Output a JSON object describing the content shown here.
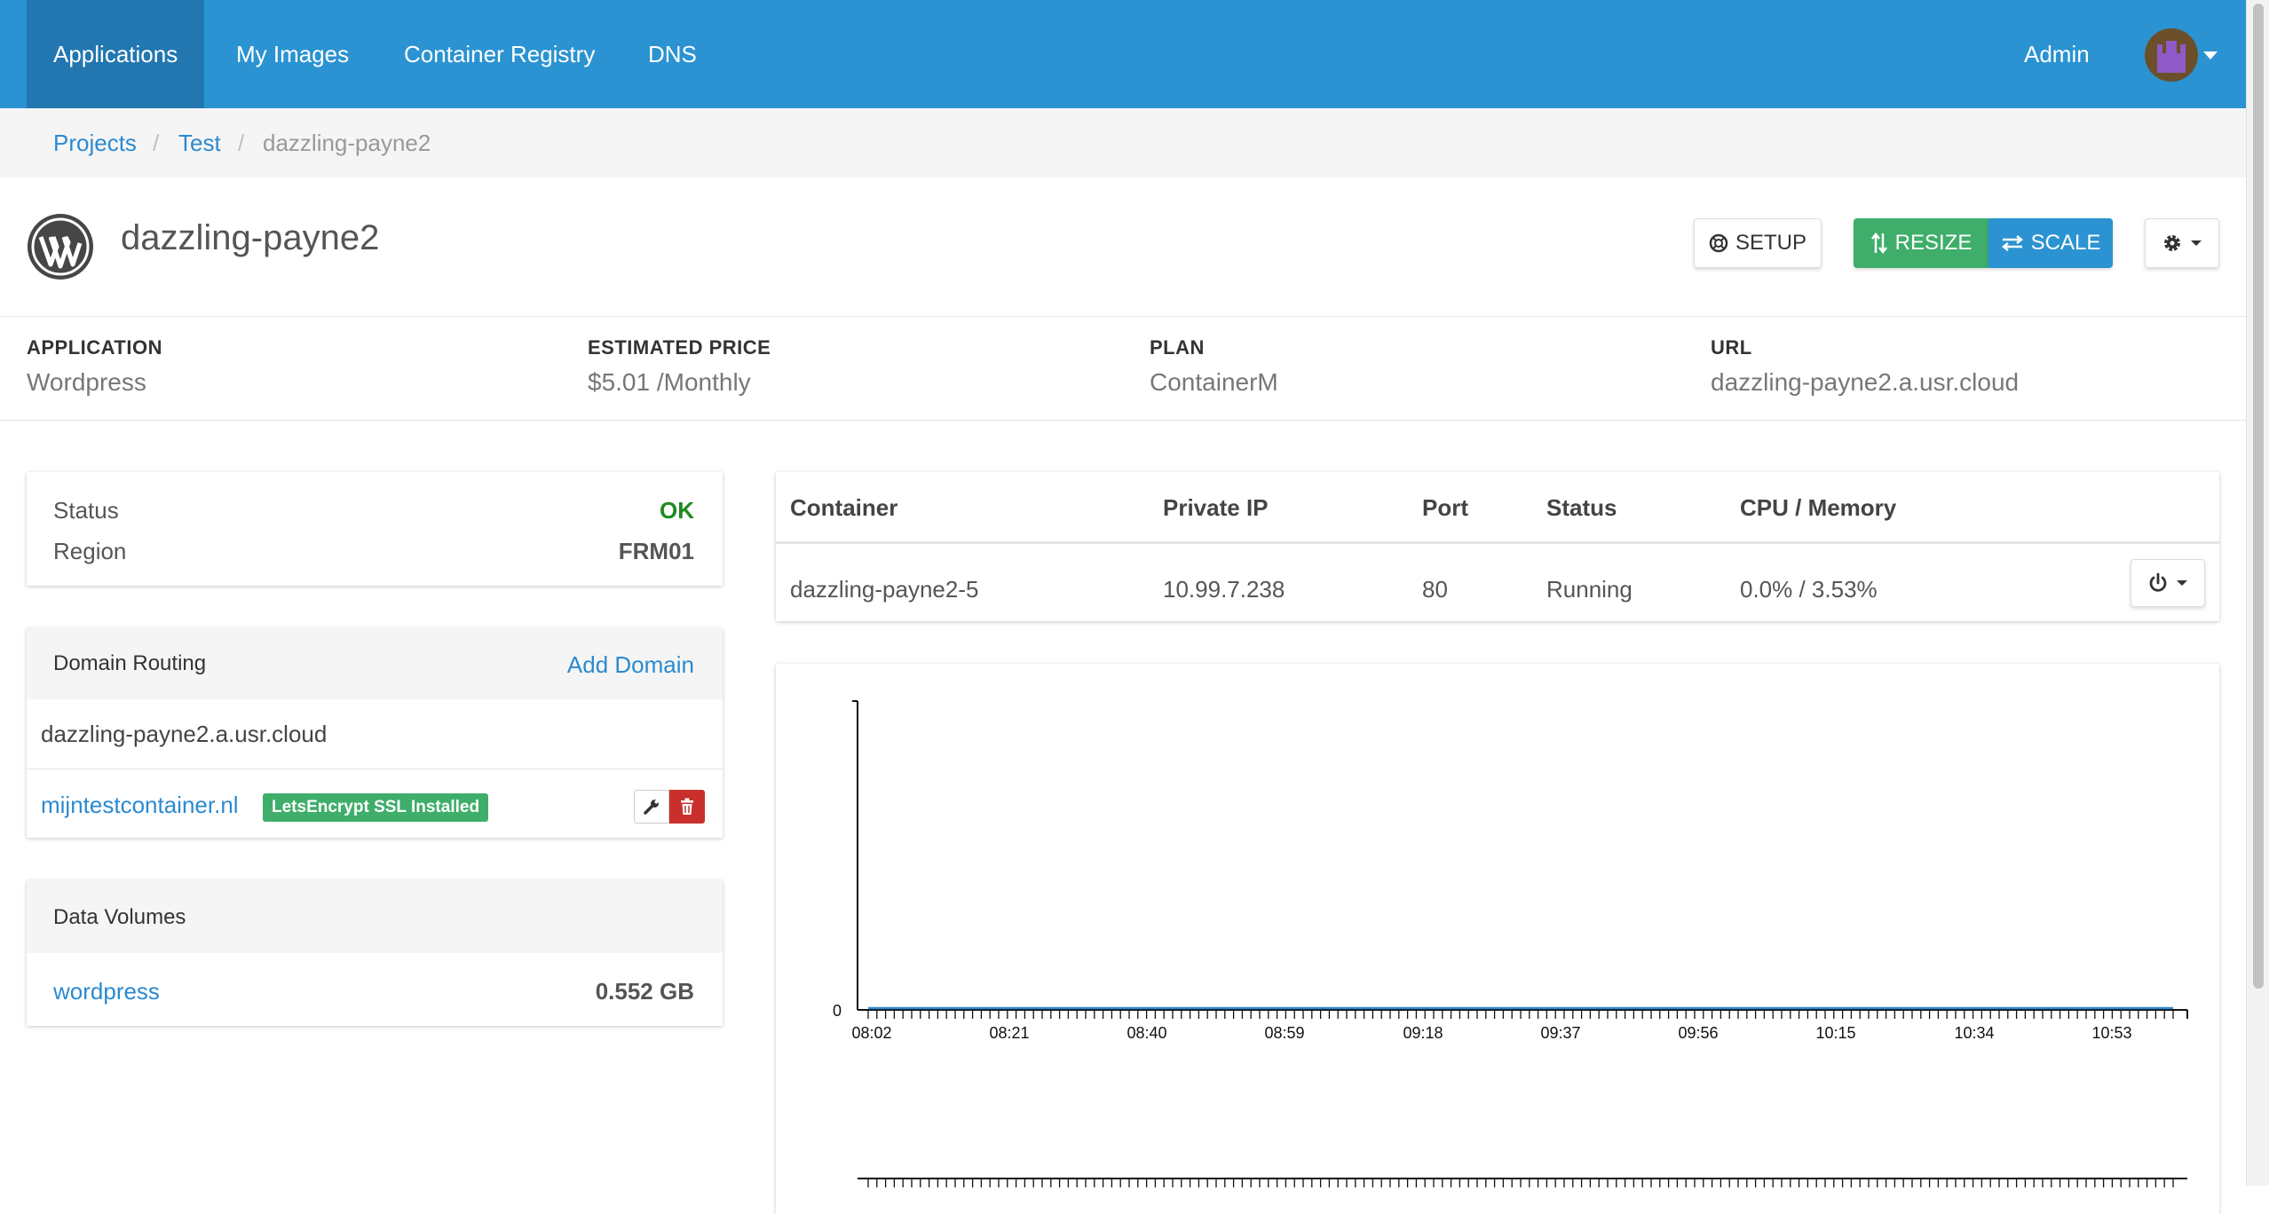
{
  "nav": {
    "items": [
      "Applications",
      "My Images",
      "Container Registry",
      "DNS"
    ],
    "admin_label": "Admin"
  },
  "breadcrumb": {
    "projects": "Projects",
    "test": "Test",
    "current": "dazzling-payne2",
    "separator": "/"
  },
  "app": {
    "title": "dazzling-payne2",
    "setup_label": "SETUP",
    "resize_label": "RESIZE",
    "scale_label": "SCALE"
  },
  "info": {
    "application_label": "APPLICATION",
    "application_value": "Wordpress",
    "price_label": "ESTIMATED PRICE",
    "price_value": "$5.01 /Monthly",
    "plan_label": "PLAN",
    "plan_value": "ContainerM",
    "url_label": "URL",
    "url_value": "dazzling-payne2.a.usr.cloud"
  },
  "status_card": {
    "status_label": "Status",
    "status_value": "OK",
    "region_label": "Region",
    "region_value": "FRM01"
  },
  "domain_routing": {
    "title": "Domain Routing",
    "add_label": "Add Domain",
    "default_domain": "dazzling-payne2.a.usr.cloud",
    "custom_domain": "mijntestcontainer.nl",
    "ssl_badge": "LetsEncrypt SSL Installed"
  },
  "data_volumes": {
    "title": "Data Volumes",
    "volume_name": "wordpress",
    "volume_size": "0.552 GB"
  },
  "containers": {
    "headers": [
      "Container",
      "Private IP",
      "Port",
      "Status",
      "CPU / Memory"
    ],
    "rows": [
      {
        "name": "dazzling-payne2-5",
        "ip": "10.99.7.238",
        "port": "80",
        "status": "Running",
        "usage": "0.0% / 3.53%"
      }
    ]
  },
  "colors": {
    "nav": "#2b93d1",
    "nav_active": "#2277b0",
    "green": "#3fae6a",
    "link": "#2b8ad0",
    "ok": "#1e8a1e",
    "danger": "#c9302c"
  },
  "icons": [
    "wordpress-icon",
    "lifebuoy-icon",
    "resize-icon",
    "scale-icon",
    "gear-icon",
    "caret-down-icon",
    "power-icon",
    "wrench-icon",
    "trash-icon"
  ],
  "chart_data": {
    "type": "line",
    "x": [
      "08:02",
      "08:21",
      "08:40",
      "08:59",
      "09:18",
      "09:37",
      "09:56",
      "10:15",
      "10:34",
      "10:53"
    ],
    "y_ticks": [
      "0"
    ],
    "series": [
      {
        "values": [
          0,
          0,
          0,
          0,
          0,
          0,
          0,
          0,
          0,
          0
        ]
      }
    ],
    "ylim": [
      0,
      1
    ],
    "grid": false
  }
}
